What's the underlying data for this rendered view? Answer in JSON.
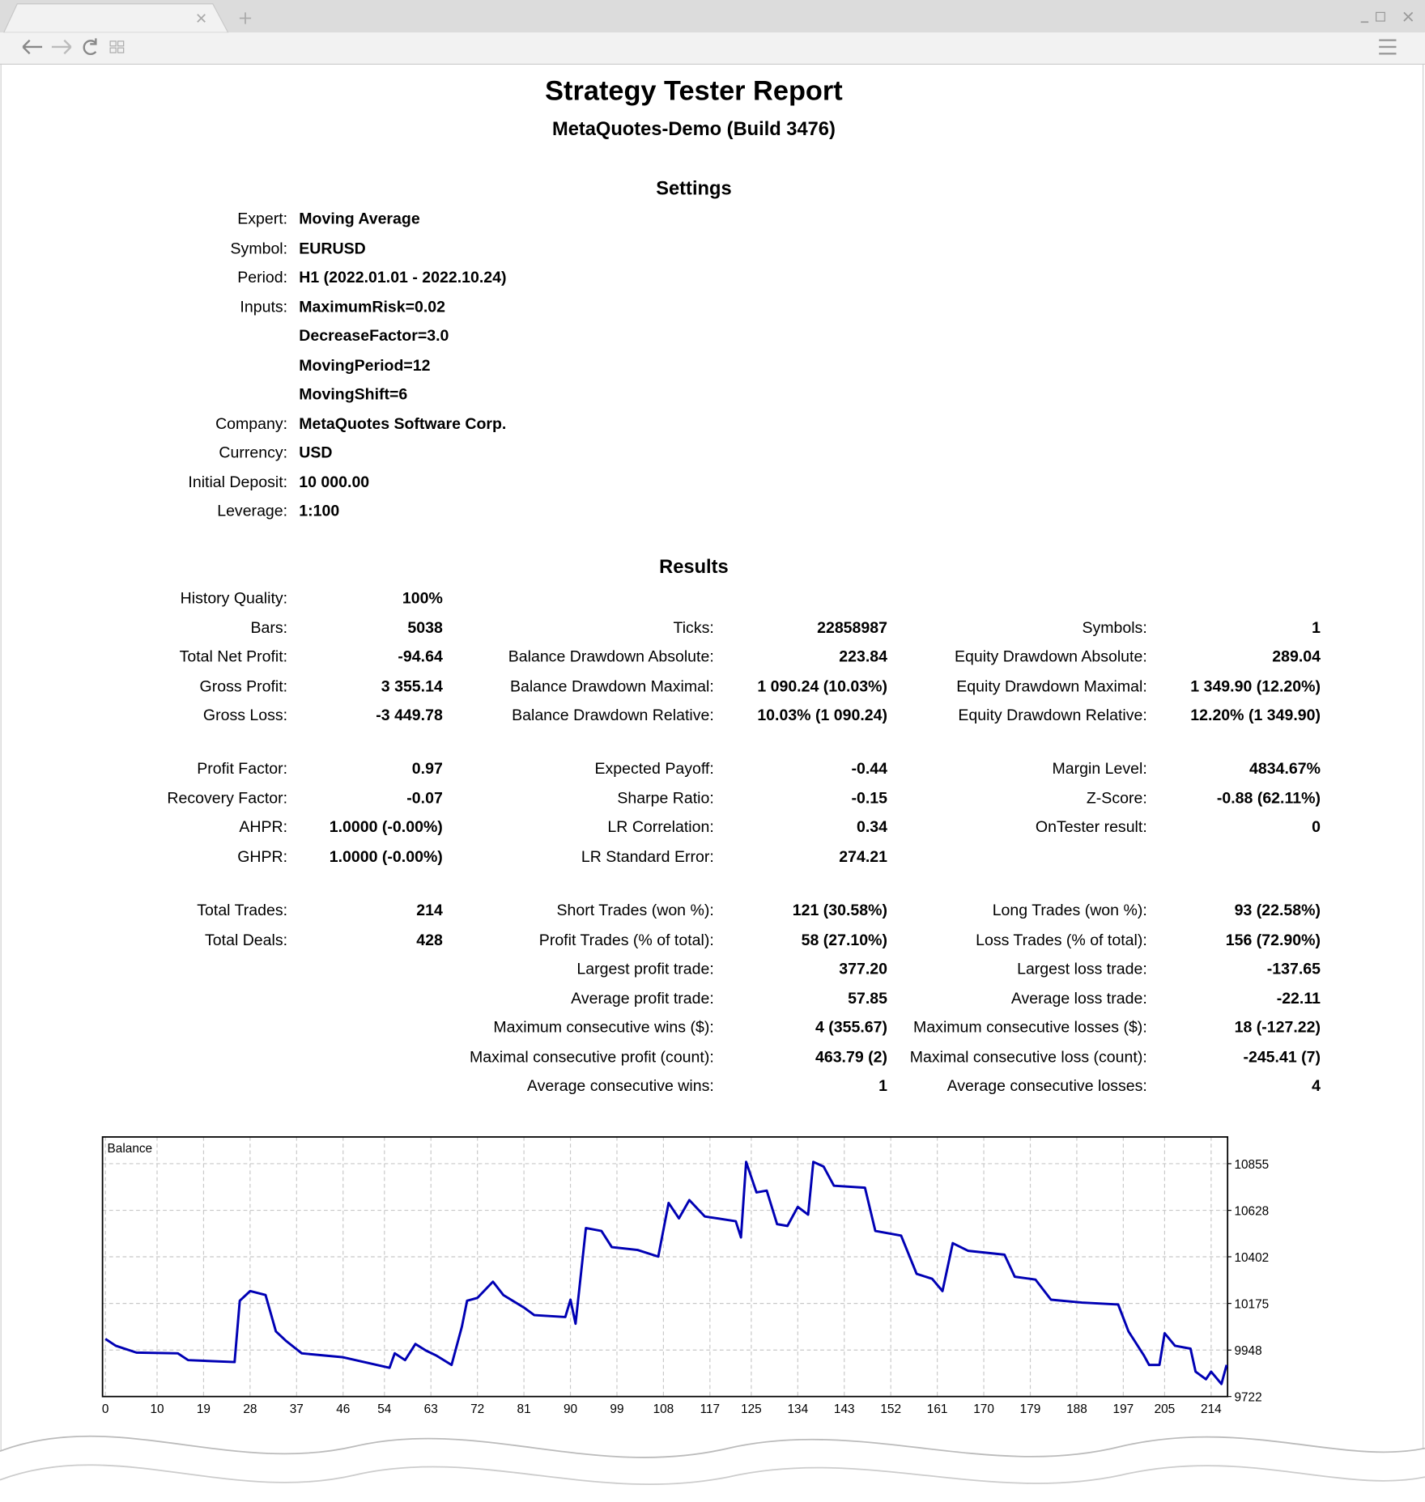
{
  "report": {
    "title": "Strategy Tester Report",
    "subtitle": "MetaQuotes-Demo (Build 3476)"
  },
  "settings": {
    "title": "Settings",
    "rows": [
      {
        "label": "Expert:",
        "values": [
          "Moving Average"
        ]
      },
      {
        "label": "Symbol:",
        "values": [
          "EURUSD"
        ]
      },
      {
        "label": "Period:",
        "values": [
          "H1 (2022.01.01 - 2022.10.24)"
        ]
      },
      {
        "label": "Inputs:",
        "values": [
          "MaximumRisk=0.02",
          "DecreaseFactor=3.0",
          "MovingPeriod=12",
          "MovingShift=6"
        ]
      },
      {
        "label": "Company:",
        "values": [
          "MetaQuotes Software Corp."
        ]
      },
      {
        "label": "Currency:",
        "values": [
          "USD"
        ]
      },
      {
        "label": "Initial Deposit:",
        "values": [
          "10 000.00"
        ]
      },
      {
        "label": "Leverage:",
        "values": [
          "1:100"
        ]
      }
    ]
  },
  "results": {
    "title": "Results",
    "groups": [
      {
        "columns": [
          [
            {
              "label": "History Quality:",
              "value": "100%"
            },
            {
              "label": "Bars:",
              "value": "5038"
            },
            {
              "label": "Total Net Profit:",
              "value": "-94.64"
            },
            {
              "label": "Gross Profit:",
              "value": "3 355.14"
            },
            {
              "label": "Gross Loss:",
              "value": "-3 449.78"
            }
          ],
          [
            {
              "label": "Ticks:",
              "value": "22858987"
            },
            {
              "label": "Balance Drawdown Absolute:",
              "value": "223.84"
            },
            {
              "label": "Balance Drawdown Maximal:",
              "value": "1 090.24 (10.03%)"
            },
            {
              "label": "Balance Drawdown Relative:",
              "value": "10.03% (1 090.24)"
            }
          ],
          [
            {
              "label": "Symbols:",
              "value": "1"
            },
            {
              "label": "Equity Drawdown Absolute:",
              "value": "289.04"
            },
            {
              "label": "Equity Drawdown Maximal:",
              "value": "1 349.90 (12.20%)"
            },
            {
              "label": "Equity Drawdown Relative:",
              "value": "12.20% (1 349.90)"
            }
          ]
        ]
      },
      {
        "columns": [
          [
            {
              "label": "Profit Factor:",
              "value": "0.97"
            },
            {
              "label": "Recovery Factor:",
              "value": "-0.07"
            },
            {
              "label": "AHPR:",
              "value": "1.0000 (-0.00%)"
            },
            {
              "label": "GHPR:",
              "value": "1.0000 (-0.00%)"
            }
          ],
          [
            {
              "label": "Expected Payoff:",
              "value": "-0.44"
            },
            {
              "label": "Sharpe Ratio:",
              "value": "-0.15"
            },
            {
              "label": "LR Correlation:",
              "value": "0.34"
            },
            {
              "label": "LR Standard Error:",
              "value": "274.21"
            }
          ],
          [
            {
              "label": "Margin Level:",
              "value": "4834.67%"
            },
            {
              "label": "Z-Score:",
              "value": "-0.88 (62.11%)"
            },
            {
              "label": "OnTester result:",
              "value": "0"
            }
          ]
        ]
      },
      {
        "columns": [
          [
            {
              "label": "Total Trades:",
              "value": "214"
            },
            {
              "label": "Total Deals:",
              "value": "428"
            }
          ],
          [
            {
              "label": "Short Trades (won %):",
              "value": "121 (30.58%)"
            },
            {
              "label": "Profit Trades (% of total):",
              "value": "58 (27.10%)"
            },
            {
              "label": "Largest profit trade:",
              "value": "377.20"
            },
            {
              "label": "Average profit trade:",
              "value": "57.85"
            },
            {
              "label": "Maximum consecutive wins ($):",
              "value": "4 (355.67)"
            },
            {
              "label": "Maximal consecutive profit (count):",
              "value": "463.79 (2)"
            },
            {
              "label": "Average consecutive wins:",
              "value": "1"
            }
          ],
          [
            {
              "label": "Long Trades (won %):",
              "value": "93 (22.58%)"
            },
            {
              "label": "Loss Trades (% of total):",
              "value": "156 (72.90%)"
            },
            {
              "label": "Largest loss trade:",
              "value": "-137.65"
            },
            {
              "label": "Average loss trade:",
              "value": "-22.11"
            },
            {
              "label": "Maximum consecutive losses ($):",
              "value": "18 (-127.22)"
            },
            {
              "label": "Maximal consecutive loss (count):",
              "value": "-245.41 (7)"
            },
            {
              "label": "Average consecutive losses:",
              "value": "4"
            }
          ]
        ]
      }
    ]
  },
  "balance_chart": {
    "type": "line",
    "label": "Balance",
    "color": "#0000b4",
    "grid": true,
    "x": [
      0,
      2,
      6,
      14,
      16,
      25,
      26,
      28,
      31,
      33,
      35,
      38,
      46,
      55,
      56,
      58,
      60,
      62,
      64,
      67,
      69,
      70,
      72,
      75,
      77,
      81,
      83,
      89,
      90,
      91,
      93,
      96,
      98,
      103,
      107,
      109,
      111,
      113,
      116,
      122,
      123,
      124,
      126,
      128,
      130,
      132,
      134,
      136,
      137,
      139,
      141,
      147,
      149,
      154,
      157,
      160,
      162,
      164,
      167,
      174,
      176,
      180,
      183,
      189,
      196,
      198,
      201,
      202,
      204,
      205,
      207,
      210,
      211,
      213,
      214,
      216,
      217
    ],
    "values": [
      10002,
      9969,
      9936,
      9932,
      9899,
      9890,
      10188,
      10235,
      10216,
      10039,
      9992,
      9932,
      9913,
      9862,
      9932,
      9899,
      9978,
      9946,
      9922,
      9876,
      10062,
      10188,
      10202,
      10281,
      10216,
      10155,
      10118,
      10109,
      10193,
      10076,
      10542,
      10528,
      10449,
      10435,
      10403,
      10664,
      10589,
      10678,
      10598,
      10575,
      10496,
      10864,
      10715,
      10724,
      10561,
      10552,
      10645,
      10607,
      10864,
      10841,
      10748,
      10738,
      10528,
      10505,
      10319,
      10295,
      10235,
      10468,
      10431,
      10412,
      10305,
      10291,
      10193,
      10179,
      10170,
      10039,
      9922,
      9876,
      9876,
      10030,
      9969,
      9955,
      9843,
      9806,
      9843,
      9783,
      9876
    ],
    "xlim": [
      0,
      217
    ],
    "ylim": [
      9722,
      10985
    ],
    "xticks": [
      0,
      10,
      19,
      28,
      37,
      46,
      54,
      63,
      72,
      81,
      90,
      99,
      108,
      117,
      125,
      134,
      143,
      152,
      161,
      170,
      179,
      188,
      197,
      205,
      214
    ],
    "yticks": [
      9722,
      9948,
      10175,
      10402,
      10628,
      10855
    ]
  }
}
